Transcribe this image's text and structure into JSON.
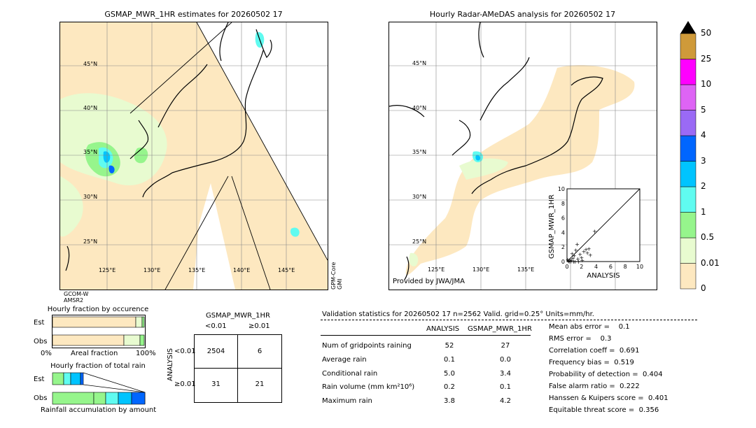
{
  "left_map": {
    "title": "GSMAP_MWR_1HR estimates for 20260502 17",
    "lat_labels": [
      "45°N",
      "40°N",
      "35°N",
      "30°N",
      "25°N"
    ],
    "lon_labels": [
      "125°E",
      "130°E",
      "135°E",
      "140°E",
      "145°E"
    ],
    "sat_left": "GCOM-W\nAMSR2",
    "sat_right": "GPM-Core\nGMI"
  },
  "right_map": {
    "title": "Hourly Radar-AMeDAS analysis for 20260502 17",
    "lat_labels": [
      "45°N",
      "40°N",
      "35°N",
      "30°N",
      "25°N"
    ],
    "lon_labels": [
      "125°E",
      "130°E",
      "135°E"
    ],
    "credit": "Provided by JWA/JMA"
  },
  "colorbar": {
    "levels": [
      "0",
      "0.01",
      "0.5",
      "1",
      "2",
      "3",
      "4",
      "5",
      "10",
      "25",
      "50"
    ],
    "colors": [
      "#fde8c0",
      "#e8fbd0",
      "#96f58c",
      "#60fbf0",
      "#00c4ff",
      "#0066ff",
      "#9a6af5",
      "#de64f5",
      "#ff00ff",
      "#cf9a3a"
    ]
  },
  "scatter": {
    "xlabel": "ANALYSIS",
    "ylabel": "GSMAP_MWR_1HR",
    "ticks": [
      "0",
      "2",
      "4",
      "6",
      "8",
      "10"
    ],
    "ytick_top": "10"
  },
  "fraction_occurrence": {
    "title": "Hourly fraction by occurence",
    "rows": [
      "Est",
      "Obs"
    ],
    "xlabel_left": "0%",
    "xlabel_mid": "Areal fraction",
    "xlabel_right": "100%"
  },
  "fraction_total": {
    "title": "Hourly fraction of total rain",
    "rows": [
      "Est",
      "Obs"
    ],
    "xlabel": "Rainfall accumulation by amount"
  },
  "contingency": {
    "title": "GSMAP_MWR_1HR",
    "col_labels": [
      "<0.01",
      "≥0.01"
    ],
    "row_axis": "ANALYSIS",
    "row_labels": [
      "<0.01",
      "≥0.01"
    ],
    "cells": [
      [
        "2504",
        "6"
      ],
      [
        "31",
        "21"
      ]
    ]
  },
  "validation": {
    "header": "Validation statistics for 20260502 17  n=2562 Valid. grid=0.25° Units=mm/hr.",
    "col_analysis": "ANALYSIS",
    "col_gsmap": "GSMAP_MWR_1HR",
    "rows": [
      {
        "label": "Num of gridpoints raining",
        "analysis": "52",
        "gsmap": "27"
      },
      {
        "label": "Average rain",
        "analysis": "0.1",
        "gsmap": "0.0"
      },
      {
        "label": "Conditional rain",
        "analysis": "5.0",
        "gsmap": "3.4"
      },
      {
        "label": "Rain volume (mm km²10⁶)",
        "analysis": "0.2",
        "gsmap": "0.1"
      },
      {
        "label": "Maximum rain",
        "analysis": "3.8",
        "gsmap": "4.2"
      }
    ],
    "scores": [
      "Mean abs error =    0.1",
      "RMS error =    0.3",
      "Correlation coeff =  0.691",
      "Frequency bias =  0.519",
      "Probability of detection =  0.404",
      "False alarm ratio =  0.222",
      "Hanssen & Kuipers score =  0.401",
      "Equitable threat score =  0.356"
    ]
  },
  "chart_data": {
    "type": "scatter",
    "title": "",
    "xlabel": "ANALYSIS",
    "ylabel": "GSMAP_MWR_1HR",
    "xlim": [
      0,
      10
    ],
    "ylim": [
      0,
      10
    ],
    "points": [
      {
        "x": 0.2,
        "y": 0.1
      },
      {
        "x": 0.4,
        "y": 0.3
      },
      {
        "x": 0.6,
        "y": 0.2
      },
      {
        "x": 0.8,
        "y": 0.5
      },
      {
        "x": 1.0,
        "y": 0.8
      },
      {
        "x": 1.2,
        "y": 1.6
      },
      {
        "x": 1.5,
        "y": 0.4
      },
      {
        "x": 1.8,
        "y": 1.0
      },
      {
        "x": 2.0,
        "y": 0.6
      },
      {
        "x": 2.3,
        "y": 1.4
      },
      {
        "x": 2.6,
        "y": 1.7
      },
      {
        "x": 2.8,
        "y": 1.2
      },
      {
        "x": 3.0,
        "y": 1.8
      },
      {
        "x": 3.2,
        "y": 0.9
      },
      {
        "x": 3.8,
        "y": 4.2
      },
      {
        "x": 1.4,
        "y": 2.4
      },
      {
        "x": 0.3,
        "y": 0.0
      },
      {
        "x": 0.5,
        "y": 0.0
      },
      {
        "x": 0.9,
        "y": 0.0
      },
      {
        "x": 1.1,
        "y": 0.0
      },
      {
        "x": 0.1,
        "y": 0.3
      },
      {
        "x": 0.7,
        "y": 1.1
      },
      {
        "x": 2.1,
        "y": 0.2
      },
      {
        "x": 1.6,
        "y": 0.0
      }
    ]
  }
}
